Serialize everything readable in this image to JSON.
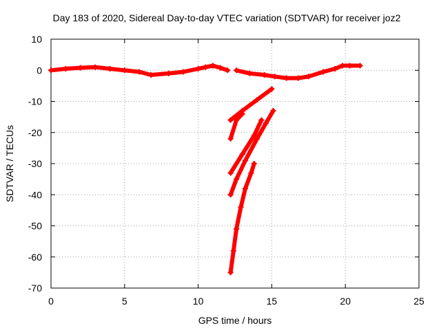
{
  "chart_data": {
    "type": "scatter",
    "title": "Day 183 of 2020, Sidereal Day-to-day VTEC variation (SDTVAR) for receiver joz2",
    "xlabel": "GPS time / hours",
    "ylabel": "SDTVAR / TECUs",
    "xlim": [
      0,
      25
    ],
    "ylim": [
      -70,
      10
    ],
    "xticks": [
      "0",
      "5",
      "10",
      "15",
      "20",
      "25"
    ],
    "yticks": [
      "10",
      "0",
      "-10",
      "-20",
      "-30",
      "-40",
      "-50",
      "-60",
      "-70"
    ],
    "grid": true,
    "legend": "none",
    "colors": {
      "series": "#ff0000"
    },
    "segments": [
      {
        "x": [
          0,
          1,
          2,
          3,
          4,
          5,
          6,
          6.8,
          8,
          9,
          10,
          10.5,
          11,
          11.5,
          12
        ],
        "y": [
          0,
          0.5,
          0.8,
          1,
          0.5,
          0,
          -0.5,
          -1.5,
          -1,
          -0.5,
          0.5,
          1,
          1.5,
          0.8,
          0
        ]
      },
      {
        "x": [
          12.6,
          13.5,
          14.5,
          15.2,
          16,
          16.8,
          17.5,
          18.5,
          19.3,
          19.8,
          20.3,
          21.0
        ],
        "y": [
          0,
          -1,
          -1.5,
          -2,
          -2.5,
          -2.5,
          -2,
          -0.5,
          0.5,
          1.5,
          1.5,
          1.5
        ]
      },
      {
        "x": [
          12.2,
          13.0,
          14.0,
          15.0
        ],
        "y": [
          -16,
          -13,
          -9.5,
          -6
        ]
      },
      {
        "x": [
          12.2,
          12.6,
          13.0
        ],
        "y": [
          -22,
          -16,
          -14
        ]
      },
      {
        "x": [
          12.2,
          13.0,
          13.8,
          14.3
        ],
        "y": [
          -33,
          -27,
          -21,
          -16
        ]
      },
      {
        "x": [
          12.2,
          12.6,
          13.2,
          14.0,
          14.6,
          15.1
        ],
        "y": [
          -40,
          -35,
          -29,
          -22,
          -17,
          -13
        ]
      },
      {
        "x": [
          12.2,
          12.4,
          12.6,
          12.9,
          13.2,
          13.6,
          13.8
        ],
        "y": [
          -65,
          -58,
          -51,
          -44,
          -38,
          -33,
          -30
        ]
      }
    ]
  }
}
